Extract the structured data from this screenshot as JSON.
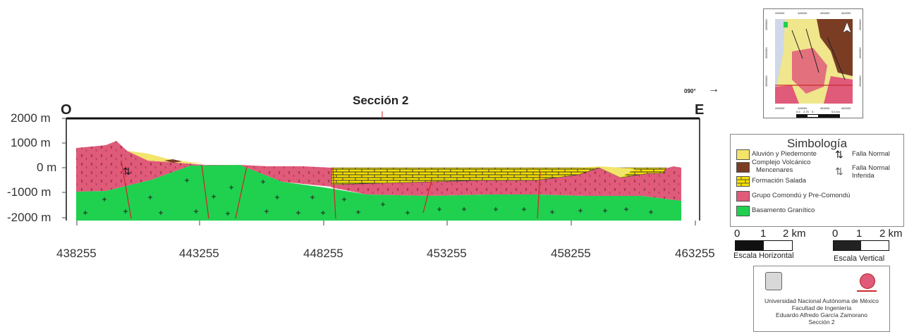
{
  "title": "Sección 2",
  "endpoints": {
    "west": "O",
    "east": "E"
  },
  "bearing": "090°",
  "elevation_labels": [
    "2000 m",
    "1000 m",
    "0 m",
    "-1000 m",
    "-2000 m"
  ],
  "distance_labels": [
    "438255",
    "443255",
    "448255",
    "453255",
    "458255",
    "463255"
  ],
  "fault_symbol": "⇅",
  "legend": {
    "title": "Simbología",
    "units": [
      {
        "label_1": "Aluvión y Piedemonte",
        "label_2": "",
        "color": "#f3e46a"
      },
      {
        "label_1": "Complejo Volcánico",
        "label_2": "Mencenares",
        "color": "#7a3d24"
      },
      {
        "label_1": "Formación Salada",
        "label_2": "",
        "color": "#f5e000"
      },
      {
        "label_1": "Grupo Comondú y Pre-Comondú",
        "label_2": "",
        "color": "#e05a7a"
      },
      {
        "label_1": "Basamento Granítico",
        "label_2": "",
        "color": "#1fd14f"
      }
    ],
    "faults": [
      {
        "label_1": "Falla Normal",
        "label_2": ""
      },
      {
        "label_1": "Falla Normal",
        "label_2": "Inferida"
      }
    ]
  },
  "scales": {
    "horizontal": {
      "caption": "Escala Horizontal",
      "ticks": [
        "0",
        "1",
        "2 km"
      ]
    },
    "vertical": {
      "caption": "Escala Vertical",
      "ticks": [
        "0",
        "1",
        "2 km"
      ]
    }
  },
  "institution": {
    "line_1": "Universidad Nacional Autónoma de México",
    "line_2": "Facultad de Ingeniería",
    "line_3": "Eduardo Alfredo García Zamorano",
    "line_4": "Sección 2"
  },
  "inset_map": {
    "top_ticks": [
      "430000",
      "445000",
      "450000",
      "462000"
    ],
    "bottom_ticks": [
      "430000",
      "445000",
      "454000",
      "462000"
    ],
    "left_ticks": [
      "2860000",
      "2855000",
      "2850000"
    ],
    "right_ticks": [
      "2860000",
      "2855000",
      "2850000"
    ],
    "scale_ticks": [
      "0.5",
      "2.75",
      "5",
      "5.5 km"
    ]
  },
  "colors": {
    "granite": "#1fd14f",
    "comondu": "#e05a7a",
    "salada": "#f5e000",
    "aluvion": "#f3e46a",
    "volcanic": "#7a3d24",
    "fault": "#cc2a2a"
  }
}
